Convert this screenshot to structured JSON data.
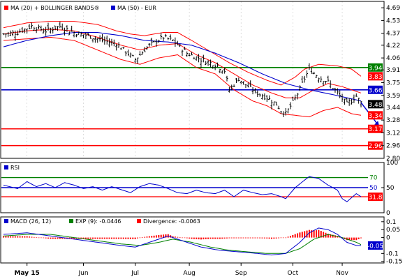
{
  "colors": {
    "price": "#000000",
    "ma20": "#ff0000",
    "bollinger": "#ff0000",
    "ma50": "#0000cc",
    "support": "#ff0000",
    "pivot": "#0000cc",
    "resistance": "#008000",
    "rsi_line": "#0000cc",
    "rsi_70": "#008000",
    "rsi_50": "#0000cc",
    "rsi_30": "#ff0000",
    "macd": "#0000cc",
    "signal": "#008000",
    "divergence": "#ff0000",
    "frame": "#000000",
    "gridline": "#c8c8c8"
  },
  "chart_data": [
    {
      "type": "candlestick",
      "legend": [
        {
          "label": "MA (20) + BOLLINGER BANDS®",
          "color": "#ff0000"
        },
        {
          "label": "MA (50) - EUR",
          "color": "#0000cc"
        }
      ],
      "y_ticks": [
        "4.69",
        "4.53",
        "4.37",
        "4.22",
        "4.06",
        "3.91",
        "3.75",
        "3.59",
        "3.44",
        "3.28",
        "3.12",
        "2.96",
        "2.80"
      ],
      "ylim": [
        2.8,
        4.77
      ],
      "x_labels": [
        "May 15",
        "Jun",
        "Jul",
        "Aug",
        "Sep",
        "Oct",
        "Nov"
      ],
      "x_label_index": [
        10,
        34,
        56,
        79,
        101,
        123,
        144
      ],
      "n_bars": 153,
      "horizontal_lines": [
        {
          "value": 3.94,
          "label": "3.94",
          "color": "#008000",
          "label_color": "#008000",
          "label_text_color": "#ffffff"
        },
        {
          "value": 3.66,
          "label": "3.66",
          "color": "#0000cc",
          "label_color": "#0000cc",
          "label_text_color": "#ffffff"
        },
        {
          "value": 3.17,
          "label": "3.17",
          "color": "#ff0000",
          "label_color": "#ff0000",
          "label_text_color": "#ffffff"
        },
        {
          "value": 2.96,
          "label": "2.96",
          "color": "#ff0000",
          "label_color": "#ff0000",
          "label_text_color": "#ffffff"
        }
      ],
      "value_labels": [
        {
          "value": 3.83,
          "label": "3.83",
          "label_color": "#ff0000",
          "label_text_color": "#ffffff"
        },
        {
          "value": 3.48,
          "label": "3.48",
          "label_color": "#000000",
          "label_text_color": "#ffffff"
        },
        {
          "value": 3.34,
          "label": "3.34",
          "label_color": "#ff0000",
          "label_text_color": "#ffffff"
        }
      ],
      "close_anchors": [
        [
          0,
          4.36
        ],
        [
          6,
          4.38
        ],
        [
          12,
          4.46
        ],
        [
          18,
          4.4
        ],
        [
          24,
          4.46
        ],
        [
          30,
          4.38
        ],
        [
          36,
          4.34
        ],
        [
          42,
          4.28
        ],
        [
          48,
          4.24
        ],
        [
          52,
          4.14
        ],
        [
          56,
          4.04
        ],
        [
          62,
          4.22
        ],
        [
          68,
          4.32
        ],
        [
          72,
          4.28
        ],
        [
          78,
          4.12
        ],
        [
          84,
          4.04
        ],
        [
          90,
          3.98
        ],
        [
          94,
          3.9
        ],
        [
          96,
          3.66
        ],
        [
          100,
          3.8
        ],
        [
          104,
          3.7
        ],
        [
          108,
          3.62
        ],
        [
          112,
          3.56
        ],
        [
          116,
          3.48
        ],
        [
          118,
          3.4
        ],
        [
          120,
          3.36
        ],
        [
          124,
          3.55
        ],
        [
          128,
          3.8
        ],
        [
          130,
          3.92
        ],
        [
          134,
          3.82
        ],
        [
          138,
          3.76
        ],
        [
          142,
          3.62
        ],
        [
          146,
          3.48
        ],
        [
          150,
          3.58
        ],
        [
          152,
          3.5
        ]
      ],
      "ma20_anchors": [
        [
          0,
          4.36
        ],
        [
          10,
          4.4
        ],
        [
          20,
          4.42
        ],
        [
          30,
          4.4
        ],
        [
          40,
          4.32
        ],
        [
          50,
          4.22
        ],
        [
          58,
          4.16
        ],
        [
          66,
          4.22
        ],
        [
          74,
          4.24
        ],
        [
          82,
          4.1
        ],
        [
          90,
          4.0
        ],
        [
          98,
          3.86
        ],
        [
          106,
          3.72
        ],
        [
          114,
          3.62
        ],
        [
          120,
          3.56
        ],
        [
          126,
          3.56
        ],
        [
          132,
          3.66
        ],
        [
          138,
          3.74
        ],
        [
          144,
          3.7
        ],
        [
          152,
          3.62
        ]
      ],
      "bb_upper_anchors": [
        [
          0,
          4.44
        ],
        [
          10,
          4.5
        ],
        [
          20,
          4.52
        ],
        [
          30,
          4.52
        ],
        [
          40,
          4.48
        ],
        [
          48,
          4.4
        ],
        [
          54,
          4.36
        ],
        [
          60,
          4.34
        ],
        [
          68,
          4.38
        ],
        [
          74,
          4.38
        ],
        [
          80,
          4.28
        ],
        [
          88,
          4.14
        ],
        [
          96,
          4.0
        ],
        [
          104,
          3.88
        ],
        [
          112,
          3.78
        ],
        [
          118,
          3.72
        ],
        [
          124,
          3.82
        ],
        [
          128,
          3.92
        ],
        [
          134,
          3.98
        ],
        [
          142,
          3.96
        ],
        [
          148,
          3.92
        ],
        [
          152,
          3.83
        ]
      ],
      "bb_lower_anchors": [
        [
          0,
          4.28
        ],
        [
          10,
          4.3
        ],
        [
          20,
          4.32
        ],
        [
          30,
          4.28
        ],
        [
          40,
          4.16
        ],
        [
          50,
          4.04
        ],
        [
          58,
          3.98
        ],
        [
          66,
          4.06
        ],
        [
          74,
          4.1
        ],
        [
          82,
          3.94
        ],
        [
          90,
          3.86
        ],
        [
          98,
          3.66
        ],
        [
          106,
          3.52
        ],
        [
          112,
          3.46
        ],
        [
          118,
          3.36
        ],
        [
          124,
          3.34
        ],
        [
          130,
          3.32
        ],
        [
          136,
          3.4
        ],
        [
          142,
          3.44
        ],
        [
          148,
          3.36
        ],
        [
          152,
          3.34
        ]
      ],
      "ma50_anchors": [
        [
          0,
          4.2
        ],
        [
          10,
          4.28
        ],
        [
          20,
          4.34
        ],
        [
          30,
          4.38
        ],
        [
          40,
          4.38
        ],
        [
          50,
          4.34
        ],
        [
          60,
          4.28
        ],
        [
          70,
          4.26
        ],
        [
          80,
          4.22
        ],
        [
          90,
          4.12
        ],
        [
          100,
          4.0
        ],
        [
          110,
          3.86
        ],
        [
          120,
          3.74
        ],
        [
          130,
          3.66
        ],
        [
          140,
          3.6
        ],
        [
          152,
          3.52
        ]
      ],
      "arrow": {
        "from": [
          152,
          3.5
        ],
        "to": [
          158,
          3.2
        ],
        "color": "#0000cc"
      }
    },
    {
      "type": "line",
      "title": "RSI",
      "y_ticks": [
        "100",
        "50",
        "0"
      ],
      "ylim": [
        0,
        100
      ],
      "levels": [
        {
          "value": 70,
          "label": "70",
          "color": "#008000"
        },
        {
          "value": 50,
          "label": "50",
          "color": "#0000cc"
        },
        {
          "value": 31.8,
          "label": "31.8",
          "color": "#ff0000",
          "label_color": "#ff0000",
          "label_text_color": "#ffffff"
        }
      ],
      "rsi_anchors": [
        [
          0,
          55
        ],
        [
          6,
          48
        ],
        [
          10,
          62
        ],
        [
          14,
          52
        ],
        [
          18,
          58
        ],
        [
          22,
          50
        ],
        [
          26,
          60
        ],
        [
          30,
          55
        ],
        [
          34,
          48
        ],
        [
          38,
          52
        ],
        [
          42,
          45
        ],
        [
          46,
          52
        ],
        [
          50,
          46
        ],
        [
          54,
          40
        ],
        [
          58,
          52
        ],
        [
          62,
          58
        ],
        [
          66,
          55
        ],
        [
          70,
          48
        ],
        [
          74,
          40
        ],
        [
          78,
          38
        ],
        [
          82,
          45
        ],
        [
          86,
          40
        ],
        [
          90,
          38
        ],
        [
          94,
          45
        ],
        [
          98,
          32
        ],
        [
          102,
          45
        ],
        [
          106,
          40
        ],
        [
          110,
          36
        ],
        [
          114,
          38
        ],
        [
          118,
          32
        ],
        [
          120,
          28
        ],
        [
          124,
          50
        ],
        [
          128,
          65
        ],
        [
          130,
          72
        ],
        [
          134,
          68
        ],
        [
          138,
          55
        ],
        [
          142,
          45
        ],
        [
          144,
          28
        ],
        [
          146,
          22
        ],
        [
          148,
          30
        ],
        [
          150,
          38
        ],
        [
          152,
          32
        ]
      ]
    },
    {
      "type": "line",
      "legend": [
        {
          "label": "MACD (26, 12)",
          "color": "#0000cc"
        },
        {
          "label": "EXP (9): -0.0446",
          "color": "#008000"
        },
        {
          "label": "Divergence: -0.0063",
          "color": "#ff0000"
        }
      ],
      "y_ticks": [
        "0.1",
        "0.05",
        "0",
        "-0.1",
        "-0.15"
      ],
      "ylim": [
        -0.16,
        0.13
      ],
      "macd_label": {
        "value": -0.05,
        "label": "-0.05",
        "label_color": "#0000cc",
        "label_text_color": "#ffffff"
      },
      "macd_anchors": [
        [
          0,
          0.02
        ],
        [
          10,
          0.03
        ],
        [
          20,
          0.01
        ],
        [
          30,
          -0.01
        ],
        [
          40,
          -0.03
        ],
        [
          50,
          -0.05
        ],
        [
          56,
          -0.06
        ],
        [
          64,
          -0.02
        ],
        [
          70,
          0.01
        ],
        [
          76,
          -0.02
        ],
        [
          84,
          -0.06
        ],
        [
          92,
          -0.08
        ],
        [
          100,
          -0.09
        ],
        [
          108,
          -0.1
        ],
        [
          114,
          -0.11
        ],
        [
          120,
          -0.1
        ],
        [
          126,
          -0.03
        ],
        [
          130,
          0.03
        ],
        [
          134,
          0.06
        ],
        [
          138,
          0.05
        ],
        [
          142,
          0.02
        ],
        [
          146,
          -0.03
        ],
        [
          150,
          -0.05
        ],
        [
          152,
          -0.05
        ]
      ],
      "signal_anchors": [
        [
          0,
          0.01
        ],
        [
          10,
          0.02
        ],
        [
          20,
          0.02
        ],
        [
          30,
          0.0
        ],
        [
          40,
          -0.02
        ],
        [
          50,
          -0.04
        ],
        [
          58,
          -0.05
        ],
        [
          66,
          -0.03
        ],
        [
          72,
          -0.01
        ],
        [
          80,
          -0.03
        ],
        [
          88,
          -0.06
        ],
        [
          96,
          -0.08
        ],
        [
          104,
          -0.09
        ],
        [
          112,
          -0.1
        ],
        [
          120,
          -0.1
        ],
        [
          126,
          -0.07
        ],
        [
          132,
          -0.01
        ],
        [
          138,
          0.02
        ],
        [
          144,
          0.0
        ],
        [
          150,
          -0.03
        ],
        [
          152,
          -0.045
        ]
      ]
    }
  ]
}
